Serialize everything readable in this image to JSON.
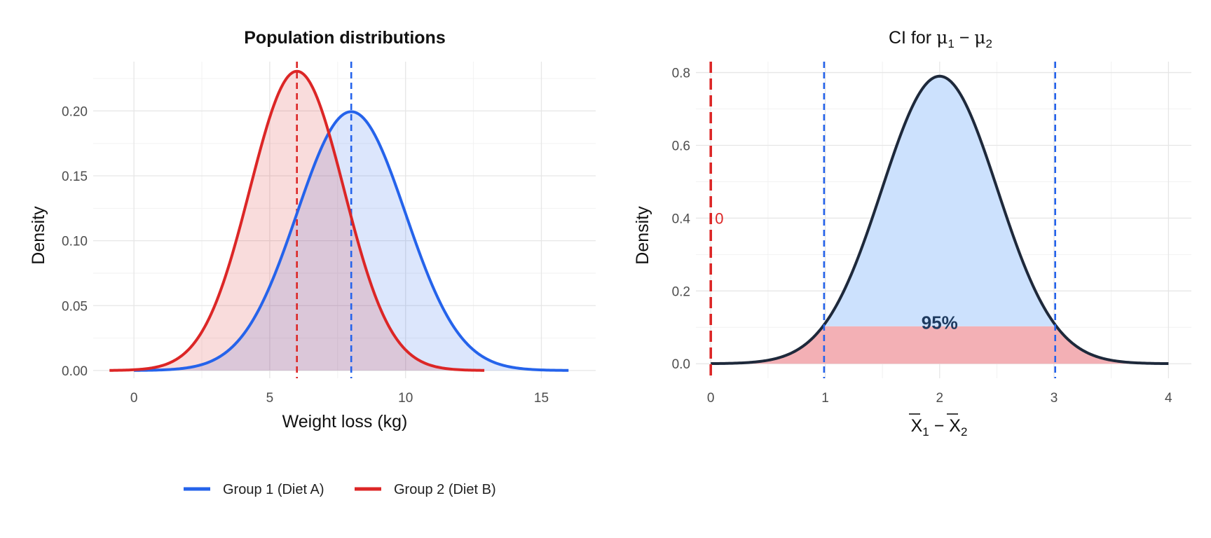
{
  "chart_data": [
    {
      "type": "line",
      "title": "Population distributions",
      "xlabel": "Weight loss (kg)",
      "ylabel": "Density",
      "xlim": [
        -1.5,
        17
      ],
      "ylim": [
        -0.006,
        0.238
      ],
      "x_ticks": [
        0,
        5,
        10,
        15
      ],
      "y_ticks": [
        0.0,
        0.05,
        0.1,
        0.15,
        0.2
      ],
      "y_tick_labels": [
        "0.00",
        "0.05",
        "0.10",
        "0.15",
        "0.20"
      ],
      "grid": true,
      "legend_position": "bottom",
      "series": [
        {
          "name": "Group 1 (Diet A)",
          "mean": 8,
          "sd": 2,
          "x_range": [
            0,
            16
          ],
          "color": "#2563eb",
          "fill": "#dbe5fb"
        },
        {
          "name": "Group 2 (Diet B)",
          "mean": 6,
          "sd": 1.73,
          "x_range": [
            -0.9,
            12.9
          ],
          "color": "#dc2626",
          "fill": "#f8d6d8"
        }
      ],
      "vlines": [
        {
          "x": 8,
          "color": "#2563eb",
          "style": "dashed"
        },
        {
          "x": 6,
          "color": "#dc2626",
          "style": "dashed"
        }
      ]
    },
    {
      "type": "area",
      "title_prefix": "CI for ",
      "title_expr": [
        "μ",
        "1",
        " − ",
        "μ",
        "2"
      ],
      "xlabel_expr": [
        "X",
        "1",
        " − ",
        "X",
        "2"
      ],
      "ylabel": "Density",
      "xlim": [
        -0.13,
        4.2
      ],
      "ylim": [
        -0.04,
        0.83
      ],
      "x_ticks": [
        0,
        1,
        2,
        3,
        4
      ],
      "y_ticks": [
        0.0,
        0.2,
        0.4,
        0.6,
        0.8
      ],
      "y_tick_labels": [
        "0.0",
        "0.2",
        "0.4",
        "0.6",
        "0.8"
      ],
      "grid": true,
      "curve": {
        "mean": 2,
        "sd": 0.505,
        "x_range": [
          0,
          4
        ],
        "color": "#1e293b"
      },
      "ci": [
        0.99,
        3.01
      ],
      "ci_label": "95%",
      "ci_fill": "#cce1fd",
      "tail_fill": "#f3b0b5",
      "tail_fill_light": "#fbc9cb",
      "band_top": 0.103,
      "ci_lines_color": "#2563eb",
      "null_line": {
        "x": 0,
        "label": "0",
        "color": "#dc2626"
      }
    }
  ]
}
